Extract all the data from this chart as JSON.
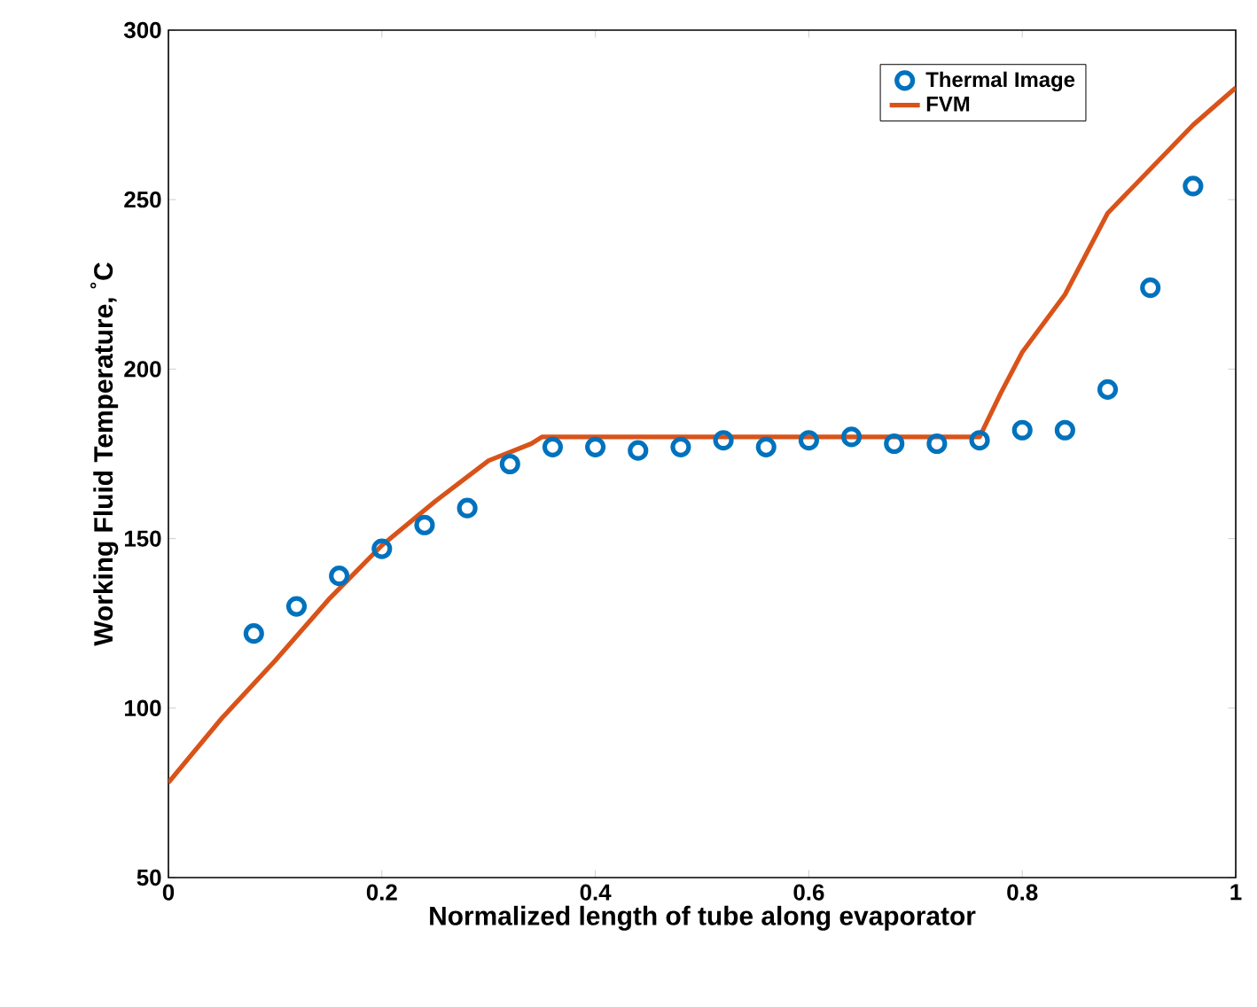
{
  "chart_data": {
    "type": "scatter",
    "xlabel": "Normalized length of tube along evaporator",
    "ylabel": "Working Fluid Temperature, $^{°}$C",
    "xlim": [
      0,
      1
    ],
    "ylim": [
      50,
      300
    ],
    "xticks": [
      0,
      0.2,
      0.4,
      0.6,
      0.8,
      1
    ],
    "yticks": [
      50,
      100,
      150,
      200,
      250,
      300
    ],
    "grid": false,
    "legend": "top right",
    "series": [
      {
        "name": "Thermal Image",
        "marker": "circle",
        "color": "#0072bd",
        "x": [
          0.08,
          0.12,
          0.16,
          0.2,
          0.24,
          0.28,
          0.32,
          0.36,
          0.4,
          0.44,
          0.48,
          0.52,
          0.56,
          0.6,
          0.64,
          0.68,
          0.72,
          0.76,
          0.8,
          0.84,
          0.88,
          0.92,
          0.96
        ],
        "values": [
          122,
          130,
          139,
          147,
          154,
          159,
          172,
          177,
          177,
          176,
          177,
          179,
          177,
          179,
          180,
          178,
          178,
          179,
          182,
          182,
          194,
          224,
          254
        ]
      },
      {
        "name": "FVM",
        "type": "line",
        "marker": "none",
        "line_style": "solid",
        "color": "#d95319",
        "x": [
          0,
          0.05,
          0.1,
          0.15,
          0.2,
          0.25,
          0.3,
          0.34,
          0.35,
          0.4,
          0.5,
          0.6,
          0.7,
          0.76,
          0.78,
          0.8,
          0.84,
          0.88,
          0.92,
          0.96,
          1
        ],
        "values": [
          78,
          97,
          114,
          132,
          148,
          161,
          173,
          178,
          180,
          180,
          180,
          180,
          180,
          180,
          193,
          205,
          222,
          246,
          259,
          272,
          283
        ]
      }
    ]
  }
}
